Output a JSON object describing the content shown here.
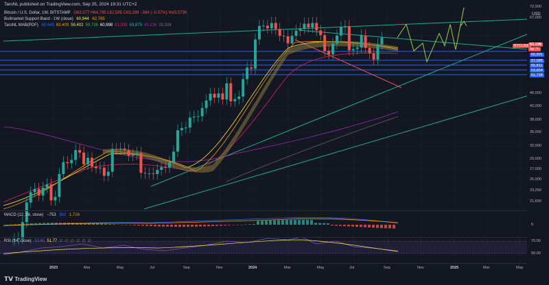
{
  "header": {
    "publish_line": "TaroNL published on TradingView.com, Sep 25, 2024 19:31 UTC+2"
  },
  "legend": {
    "symbol": "Bitcoin / U.S. Dollar, 1W, BITSTAMP",
    "ohlc": "O63,377  H64,795  L62,585  C63,199  −384 (−0.57%)  Vol3.573K",
    "band_title": "Bullmarket Support Band - 1W (close)",
    "band_values": [
      "60,944",
      "62,765"
    ],
    "ma_title": "TaroNL MAB(PDF)",
    "ma_values": [
      "60,449",
      "63,409",
      "59,402",
      "59,736",
      "60,998",
      "61,039",
      "63,875",
      "40,138",
      "19,326"
    ],
    "ma_colors": [
      "#2962ff",
      "#ff9800",
      "#ffeb3b",
      "#4caf50",
      "#ffffff",
      "#e91e63",
      "#00bcd4",
      "#9c27b0",
      "#787b86"
    ]
  },
  "price_axis": {
    "currency": "USD",
    "ticks": [
      "72,000",
      "67,000",
      "63,199",
      "60,901",
      "57,085",
      "55,811",
      "53,854",
      "51,728",
      "46,000",
      "42,000",
      "38,000",
      "35,000",
      "32,000",
      "29,000",
      "27,000",
      "25,000",
      "23,250",
      "21,650"
    ],
    "last_price": "63,199",
    "countdown": "4d 7h",
    "symbol_tag": "BTCUSD"
  },
  "macd": {
    "label": "MACD (12, 26, close)",
    "values": [
      "−753",
      "862",
      "1,716"
    ],
    "colors": [
      "#d1d4dc",
      "#2962ff",
      "#ff9800"
    ],
    "axis_tick": "0"
  },
  "rsi": {
    "label": "RSI (14, close)",
    "values": [
      "53.65",
      "51.77",
      "∅",
      "∅",
      "∅",
      "∅",
      "∅",
      "∅"
    ],
    "axis_ticks": [
      "70.00",
      "50.00"
    ]
  },
  "time_axis": [
    "2023",
    "Mar",
    "May",
    "Jul",
    "Sep",
    "Nov",
    "2024",
    "Mar",
    "May",
    "Jul",
    "Sep",
    "Nov",
    "2025",
    "Mar",
    "May"
  ],
  "footer": {
    "logo": "TradingView"
  },
  "colors": {
    "background": "#131722",
    "up": "#26a69a",
    "down": "#ef5350",
    "trend": "#22ab94",
    "support": "#2962ff",
    "projection": "#8bc34a"
  },
  "chart_data": {
    "type": "candlestick",
    "title": "Bitcoin / U.S. Dollar, 1W, BITSTAMP",
    "x_range": [
      "2022-12",
      "2025-06"
    ],
    "y_scale": "log",
    "y_range": [
      20000,
      78000
    ],
    "ohlc_last": {
      "open": 63377,
      "high": 64795,
      "low": 62585,
      "close": 63199
    },
    "weekly_close_path": [
      16800,
      16900,
      17000,
      18900,
      21500,
      23000,
      23500,
      22500,
      23700,
      24200,
      21800,
      22300,
      25900,
      28000,
      27800,
      28400,
      30300,
      29800,
      27600,
      28800,
      27200,
      26900,
      27000,
      25600,
      26300,
      30500,
      30400,
      30600,
      30300,
      29200,
      29400,
      29700,
      26100,
      26000,
      26000,
      25900,
      26600,
      27100,
      27000,
      28000,
      30000,
      34500,
      35000,
      35100,
      37500,
      37700,
      37800,
      39900,
      41900,
      43800,
      42700,
      43900,
      42200,
      46900,
      41700,
      42300,
      43000,
      48200,
      52000,
      51600,
      62500,
      68300,
      68400,
      67200,
      69600,
      66900,
      64000,
      63800,
      60900,
      64000,
      66200,
      67100,
      69300,
      67600,
      69600,
      66300,
      64300,
      58000,
      56700,
      60800,
      64100,
      67700,
      68200,
      58200,
      58700,
      59300,
      64100,
      59100,
      57000,
      54800,
      60500,
      63200
    ],
    "horizontal_levels": [
      60901,
      57085,
      55811,
      53854,
      51728
    ],
    "bull_support_band": [
      60944,
      62765
    ],
    "projection_path": [
      63199,
      69000,
      58000,
      61000,
      54000,
      65000,
      60000,
      69000,
      58500,
      77000
    ]
  }
}
